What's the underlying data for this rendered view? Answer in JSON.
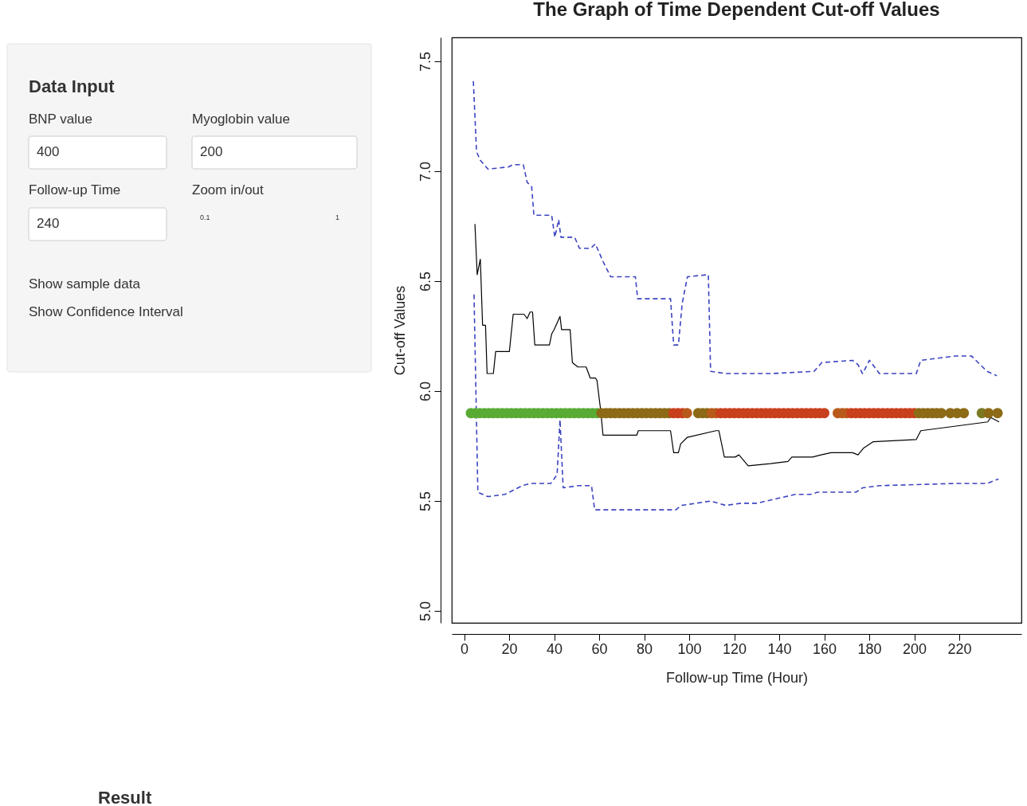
{
  "chart_data": [
    {
      "type": "other",
      "title": "Data Input",
      "annotations": [
        "BNP value",
        "400",
        "Myoglobin value",
        "200",
        "Follow-up Time",
        "240",
        "Zoom in/out",
        "0.1",
        "1",
        "Show sample data",
        "Show Confidence Interval",
        "Result"
      ]
    },
    {
      "type": "line",
      "title": "The Graph of Time Dependent Cut-off Values",
      "xlabel": "Follow-up Time (Hour)",
      "ylabel": "Cut-off Values",
      "xlim": [
        -5.5,
        247.6
      ],
      "ylim": [
        4.946,
        7.609
      ],
      "xticks": [
        0,
        20,
        40,
        60,
        80,
        100,
        120,
        140,
        160,
        180,
        200,
        220
      ],
      "yticks": [
        {
          "value": 5,
          "label": "5.0"
        },
        {
          "value": 5.5,
          "label": "5.5"
        },
        {
          "value": 6,
          "label": "6.0"
        },
        {
          "value": 6.5,
          "label": "6.5"
        },
        {
          "value": 7,
          "label": "7.0"
        },
        {
          "value": 7.5,
          "label": "7.5"
        }
      ],
      "grid": false,
      "series": [
        {
          "type": "line",
          "line_style": "solid",
          "color": "#000000",
          "x": [
            4.8,
            5.8,
            7.2,
            8.2,
            9.5,
            10.2,
            13.0,
            14.0,
            20.1,
            21.8,
            26.6,
            28,
            29.3,
            30.4,
            31.4,
            37.9,
            38.9,
            40,
            42.6,
            43.3,
            47.1,
            48.1,
            50.5,
            54.2,
            56,
            58.3,
            59,
            60.7,
            61.7,
            76.7,
            77.4,
            91.7,
            93.1,
            95.2,
            96.2,
            99.2,
            111.9,
            113.2,
            115.6,
            120.4,
            122.1,
            126.2,
            136.1,
            143.9,
            145.6,
            154.8,
            158.6,
            163.0,
            172.6,
            175,
            177.4,
            181.8,
            200.9,
            202.9,
            210.4,
            232.6,
            234.0,
            237.7
          ],
          "values": [
            6.76,
            6.53,
            6.6,
            6.3,
            6.3,
            6.08,
            6.08,
            6.18,
            6.18,
            6.35,
            6.35,
            6.33,
            6.36,
            6.36,
            6.21,
            6.21,
            6.26,
            6.28,
            6.34,
            6.28,
            6.28,
            6.13,
            6.11,
            6.11,
            6.06,
            6.06,
            6.05,
            5.91,
            5.8,
            5.8,
            5.82,
            5.82,
            5.72,
            5.72,
            5.76,
            5.79,
            5.82,
            5.82,
            5.7,
            5.7,
            5.71,
            5.66,
            5.67,
            5.68,
            5.7,
            5.7,
            5.71,
            5.72,
            5.72,
            5.71,
            5.74,
            5.77,
            5.78,
            5.82,
            5.83,
            5.86,
            5.88,
            5.86
          ]
        },
        {
          "type": "line",
          "line_style": "dashed",
          "color": "#3c44c0",
          "x": [
            4.1,
            5.5,
            7.2,
            10.6,
            19.8,
            21.5,
            26.3,
            28.0,
            30.0,
            31.0,
            38.9,
            40.3,
            42.0,
            43.0,
            49.1,
            51.2,
            56.3,
            58.3,
            61.7,
            65.1,
            76.1,
            77.1,
            91.7,
            93.1,
            95.2,
            96.9,
            99.2,
            108.5,
            109.5,
            116.3,
            136.8,
            155.5,
            158.9,
            172.6,
            175,
            177,
            180.1,
            184.5,
            200.9,
            202.9,
            218.6,
            225.4,
            232.3,
            236.7
          ],
          "values": [
            7.41,
            7.09,
            7.05,
            7.01,
            7.02,
            7.03,
            7.03,
            6.95,
            6.93,
            6.8,
            6.8,
            6.7,
            6.78,
            6.7,
            6.7,
            6.65,
            6.65,
            6.67,
            6.59,
            6.52,
            6.52,
            6.42,
            6.42,
            6.21,
            6.21,
            6.4,
            6.52,
            6.53,
            6.09,
            6.08,
            6.08,
            6.09,
            6.13,
            6.14,
            6.12,
            6.08,
            6.14,
            6.08,
            6.08,
            6.14,
            6.16,
            6.16,
            6.09,
            6.07
          ]
        },
        {
          "type": "line",
          "line_style": "dashed",
          "color": "#3c44c0",
          "x": [
            4.4,
            6.1,
            10.6,
            18.1,
            25.9,
            29.3,
            38.5,
            41.3,
            42.6,
            44.0,
            50.8,
            56.6,
            58.0,
            94.1,
            96.5,
            109.5,
            116.3,
            123,
            130,
            147,
            153.8,
            157,
            174,
            177,
            184.5,
            218.6,
            232.3,
            237.4
          ],
          "values": [
            6.44,
            5.54,
            5.52,
            5.53,
            5.57,
            5.58,
            5.58,
            5.62,
            5.87,
            5.56,
            5.57,
            5.57,
            5.46,
            5.46,
            5.48,
            5.5,
            5.48,
            5.49,
            5.49,
            5.53,
            5.53,
            5.54,
            5.54,
            5.56,
            5.57,
            5.58,
            5.58,
            5.6
          ]
        },
        {
          "type": "scatter",
          "marker": "circle",
          "x": [
            3,
            5,
            7,
            9,
            11,
            13,
            15,
            17,
            19,
            21,
            23,
            25,
            27,
            29,
            31,
            33,
            35,
            37,
            39,
            41,
            43,
            45,
            47,
            49,
            51,
            53,
            55,
            57,
            59,
            61,
            63,
            65,
            67,
            69,
            71,
            73,
            75,
            77,
            79,
            81,
            83,
            85,
            87,
            89,
            91,
            93,
            95,
            97,
            99,
            104,
            106,
            108,
            110,
            112,
            114,
            116,
            118,
            120,
            122,
            124,
            126,
            128,
            130,
            132,
            134,
            136,
            138,
            140,
            142,
            144,
            146,
            148,
            150,
            152,
            154,
            156,
            158,
            160,
            166,
            168,
            170,
            172,
            174,
            176,
            178,
            180,
            182,
            184,
            186,
            188,
            190,
            192,
            194,
            196,
            198,
            200,
            202,
            204,
            206,
            208,
            210,
            212,
            216,
            219,
            222,
            230,
            233,
            237
          ],
          "values": [
            5.9,
            5.9,
            5.9,
            5.9,
            5.9,
            5.9,
            5.9,
            5.9,
            5.9,
            5.9,
            5.9,
            5.9,
            5.9,
            5.9,
            5.9,
            5.9,
            5.9,
            5.9,
            5.9,
            5.9,
            5.9,
            5.9,
            5.9,
            5.9,
            5.9,
            5.9,
            5.9,
            5.9,
            5.9,
            5.9,
            5.9,
            5.9,
            5.9,
            5.9,
            5.9,
            5.9,
            5.9,
            5.9,
            5.9,
            5.9,
            5.9,
            5.9,
            5.9,
            5.9,
            5.9,
            5.9,
            5.9,
            5.9,
            5.9,
            5.9,
            5.9,
            5.9,
            5.9,
            5.9,
            5.9,
            5.9,
            5.9,
            5.9,
            5.9,
            5.9,
            5.9,
            5.9,
            5.9,
            5.9,
            5.9,
            5.9,
            5.9,
            5.9,
            5.9,
            5.9,
            5.9,
            5.9,
            5.9,
            5.9,
            5.9,
            5.9,
            5.9,
            5.9,
            5.9,
            5.9,
            5.9,
            5.9,
            5.9,
            5.9,
            5.9,
            5.9,
            5.9,
            5.9,
            5.9,
            5.9,
            5.9,
            5.9,
            5.9,
            5.9,
            5.9,
            5.9,
            5.9,
            5.9,
            5.9,
            5.9,
            5.9,
            5.9,
            5.9,
            5.9,
            5.9,
            5.9,
            5.9,
            5.9
          ],
          "colors": [
            "#5aab35",
            "#5aab35",
            "#5aab35",
            "#5aab35",
            "#5aab35",
            "#5aab35",
            "#5aab35",
            "#5aab35",
            "#5aab35",
            "#5aab35",
            "#5aab35",
            "#5aab35",
            "#5aab35",
            "#5aab35",
            "#5aab35",
            "#5aab35",
            "#5aab35",
            "#5aab35",
            "#5aab35",
            "#5aab35",
            "#5aab35",
            "#5aab35",
            "#5aab35",
            "#5aab35",
            "#5aab35",
            "#5aab35",
            "#5aab35",
            "#5aab35",
            "#5aab35",
            "#8c6a16",
            "#8c6a16",
            "#8c6a16",
            "#8c6a16",
            "#8c6a16",
            "#8c6a16",
            "#8c6a16",
            "#8c6a16",
            "#8c6a16",
            "#8c6a16",
            "#8c6a16",
            "#8c6a16",
            "#8c6a16",
            "#8c6a16",
            "#8c6a16",
            "#8c6a16",
            "#c8401c",
            "#c8401c",
            "#c8401c",
            "#b85a1a",
            "#8c6a16",
            "#8c6a16",
            "#8c6a16",
            "#b85a1a",
            "#b85a1a",
            "#c8401c",
            "#c8401c",
            "#c8401c",
            "#c8401c",
            "#c8401c",
            "#c8401c",
            "#c8401c",
            "#c8401c",
            "#c8401c",
            "#c8401c",
            "#c8401c",
            "#c8401c",
            "#c8401c",
            "#c8401c",
            "#c8401c",
            "#c8401c",
            "#c8401c",
            "#c8401c",
            "#c8401c",
            "#c8401c",
            "#c8401c",
            "#c8401c",
            "#c8401c",
            "#c8401c",
            "#b85a1a",
            "#b85a1a",
            "#b85a1a",
            "#c8401c",
            "#c8401c",
            "#c8401c",
            "#c8401c",
            "#c8401c",
            "#c8401c",
            "#c8401c",
            "#c8401c",
            "#c8401c",
            "#c8401c",
            "#c8401c",
            "#c8401c",
            "#c8401c",
            "#c8401c",
            "#c8401c",
            "#8c6a16",
            "#8c6a16",
            "#8c6a16",
            "#8c6a16",
            "#8c6a16",
            "#8c6a16",
            "#8c6a16",
            "#8c6a16",
            "#8c6a16",
            "#7a7a20",
            "#8c6a16",
            "#8c6a16"
          ]
        }
      ]
    }
  ]
}
